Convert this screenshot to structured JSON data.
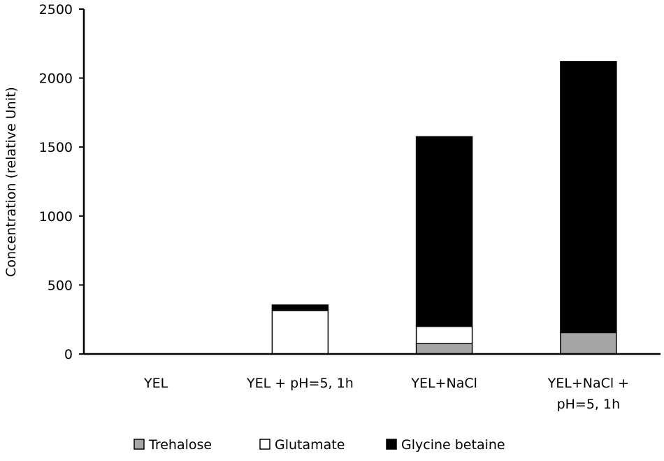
{
  "chart_data": {
    "type": "bar",
    "stacked": true,
    "title": "",
    "xlabel": "",
    "ylabel": "Concentration  (relative Unit)",
    "ylim": [
      0,
      2500
    ],
    "yticks": [
      0,
      500,
      1000,
      1500,
      2000,
      2500
    ],
    "grid": false,
    "legend_position": "bottom",
    "categories": [
      [
        "YEL"
      ],
      [
        "YEL + pH=5, 1h"
      ],
      [
        "YEL+NaCl"
      ],
      [
        "YEL+NaCl +",
        "pH=5, 1h"
      ]
    ],
    "series": [
      {
        "name": "Trehalose",
        "color": "#a6a6a6",
        "values": [
          0,
          0,
          75,
          155
        ]
      },
      {
        "name": "Glutamate",
        "color": "#ffffff",
        "values": [
          0,
          315,
          125,
          0
        ]
      },
      {
        "name": "Glycine betaine",
        "color": "#000000",
        "values": [
          0,
          40,
          1375,
          1965
        ]
      }
    ]
  }
}
